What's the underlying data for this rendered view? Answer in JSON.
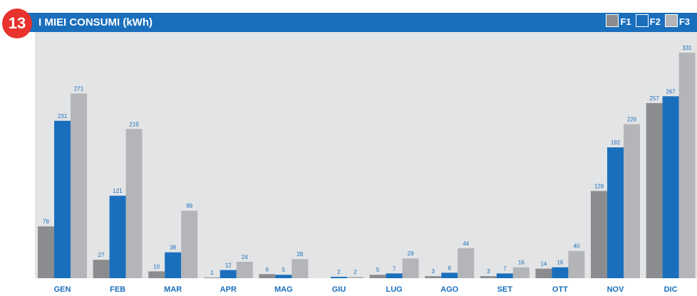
{
  "header": {
    "badge": "13",
    "title": "I MIEI CONSUMI (kWh)"
  },
  "legend": [
    {
      "label": "F1",
      "color": "#8a8c8f"
    },
    {
      "label": "F2",
      "color": "#1a6fbd"
    },
    {
      "label": "F3",
      "color": "#b3b5b8"
    }
  ],
  "chart_data": {
    "type": "bar",
    "title": "I MIEI CONSUMI (kWh)",
    "categories": [
      "GEN",
      "FEB",
      "MAR",
      "APR",
      "MAG",
      "GIU",
      "LUG",
      "AGO",
      "SET",
      "OTT",
      "NOV",
      "DIC"
    ],
    "series": [
      {
        "name": "F1",
        "color": "#8a8c8f",
        "values": [
          76,
          27,
          10,
          1,
          6,
          null,
          5,
          3,
          3,
          14,
          128,
          257
        ]
      },
      {
        "name": "F2",
        "color": "#1a6fbd",
        "values": [
          231,
          121,
          38,
          12,
          5,
          2,
          7,
          8,
          7,
          16,
          192,
          267
        ]
      },
      {
        "name": "F3",
        "color": "#b3b5b8",
        "values": [
          271,
          219,
          99,
          24,
          28,
          2,
          29,
          44,
          16,
          40,
          226,
          331
        ]
      }
    ],
    "ylim": [
      0,
      331
    ],
    "grid": false,
    "legend_position": "top-right"
  }
}
